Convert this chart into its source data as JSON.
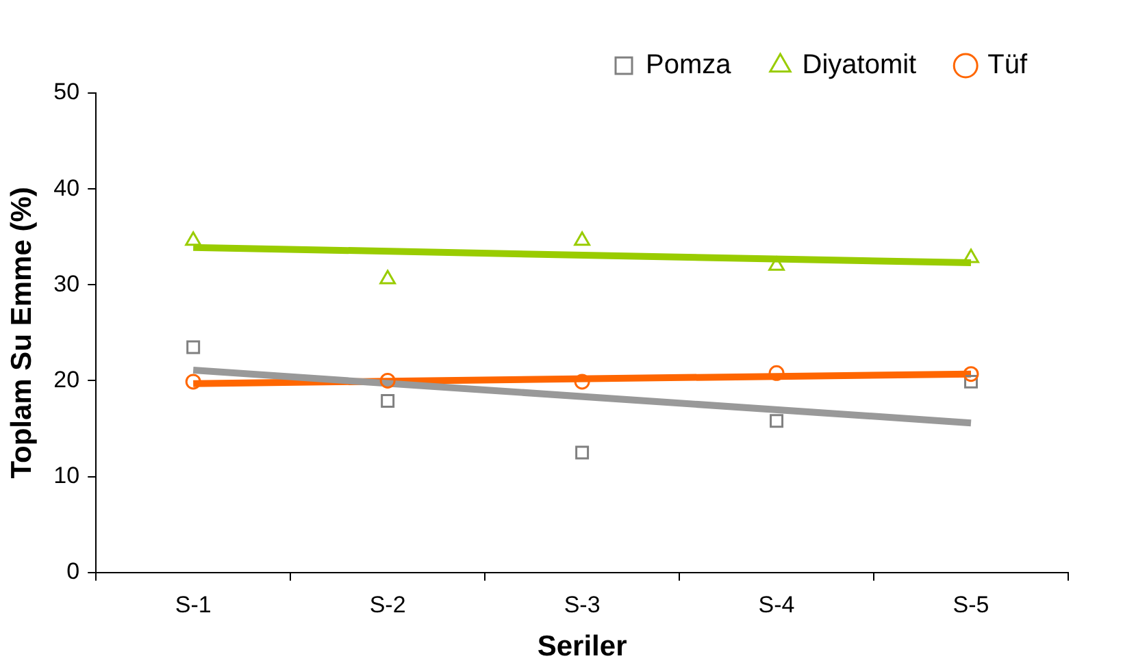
{
  "chart_data": {
    "type": "scatter",
    "xlabel": "Seriler",
    "ylabel": "Toplam Su Emme (%)",
    "categories": [
      "S-1",
      "S-2",
      "S-3",
      "S-4",
      "S-5"
    ],
    "ylim": [
      0,
      50
    ],
    "yticks": [
      0,
      10,
      20,
      30,
      40,
      50
    ],
    "grid": false,
    "legend": "top right",
    "series": [
      {
        "name": "Pomza",
        "color": "#808080",
        "marker": "square",
        "values": [
          23.5,
          17.9,
          12.5,
          15.8,
          19.9
        ]
      },
      {
        "name": "Diyatomit",
        "color": "#99cc00",
        "marker": "triangle",
        "values": [
          34.6,
          30.6,
          34.6,
          32.0,
          32.8
        ]
      },
      {
        "name": "Tüf",
        "color": "#ff6600",
        "marker": "circle",
        "values": [
          19.9,
          20.0,
          19.9,
          20.8,
          20.7
        ]
      },
      {
        "type": "line",
        "color": "#999999",
        "marker": "none",
        "line_style": "solid",
        "x": [
          "S-1",
          "S-5"
        ],
        "values": [
          21.1,
          15.6
        ]
      },
      {
        "type": "line",
        "color": "#99cc00",
        "marker": "none",
        "line_style": "solid",
        "x": [
          "S-1",
          "S-5"
        ],
        "values": [
          33.9,
          32.3
        ]
      },
      {
        "type": "line",
        "color": "#ff6600",
        "marker": "none",
        "line_style": "solid",
        "x": [
          "S-1",
          "S-5"
        ],
        "values": [
          19.7,
          20.7
        ]
      }
    ]
  }
}
